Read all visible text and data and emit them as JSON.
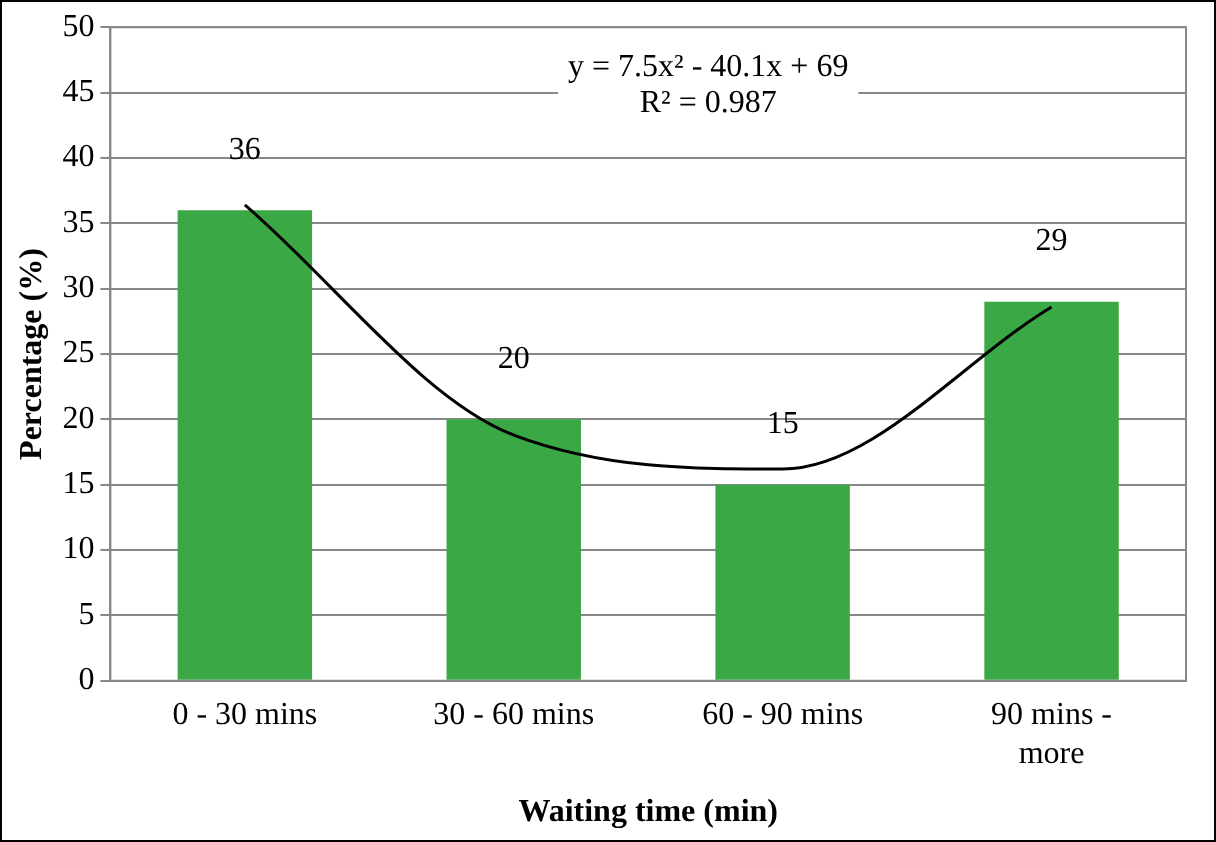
{
  "chart_data": {
    "type": "bar",
    "xlabel": "Waiting time (min)",
    "ylabel": "Percentage (%)",
    "categories": [
      "0 - 30 mins",
      "30 - 60 mins",
      "60 - 90 mins",
      "90 mins - more"
    ],
    "series": [
      {
        "color": "#3aa845",
        "values": [
          36,
          20,
          15,
          29
        ],
        "value_labels": [
          "36",
          "20",
          "15",
          "29"
        ]
      },
      {
        "type": "line",
        "color": "#000000",
        "values": [
          36.4,
          18.8,
          16.2,
          28.6
        ],
        "marker": "none"
      }
    ],
    "ylim": [
      0,
      50
    ],
    "yticks": [
      0,
      5,
      10,
      15,
      20,
      25,
      30,
      35,
      40,
      45,
      50
    ],
    "grid": "y",
    "legend": false,
    "annotations": [
      "y = 7.5x² - 40.1x + 69",
      "R² = 0.987"
    ]
  }
}
